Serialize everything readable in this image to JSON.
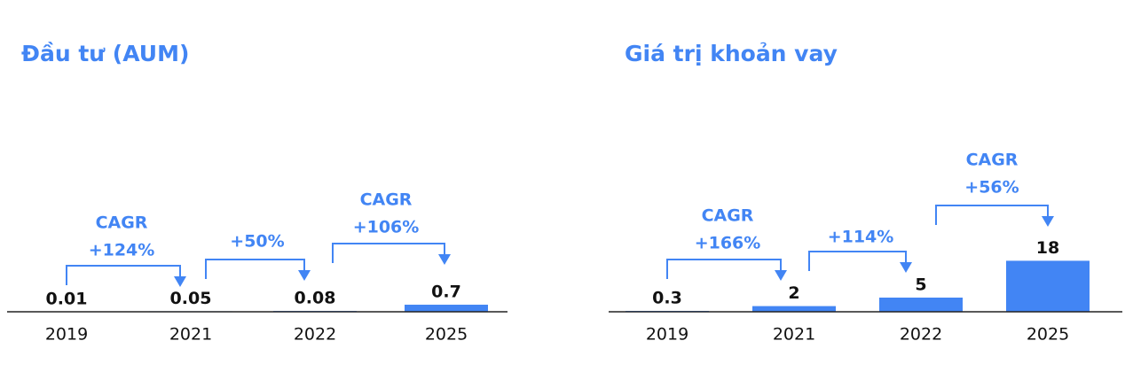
{
  "chart_data": [
    {
      "type": "bar",
      "title": "Đầu tư (AUM)",
      "color": "#4285f4",
      "categories": [
        "2019",
        "2021",
        "2022",
        "2025"
      ],
      "values": [
        0.01,
        0.05,
        0.08,
        0.7
      ],
      "annotations": [
        [
          "CAGR",
          "+124%"
        ],
        [
          "+50%"
        ],
        [
          "CAGR",
          "+106%"
        ]
      ]
    },
    {
      "type": "bar",
      "title": "Giá trị khoản vay",
      "color": "#4285f4",
      "categories": [
        "2019",
        "2021",
        "2022",
        "2025"
      ],
      "values": [
        0.3,
        2,
        5,
        18
      ],
      "annotations": [
        [
          "CAGR",
          "+166%"
        ],
        [
          "+114%"
        ],
        [
          "CAGR",
          "+56%"
        ]
      ]
    }
  ]
}
